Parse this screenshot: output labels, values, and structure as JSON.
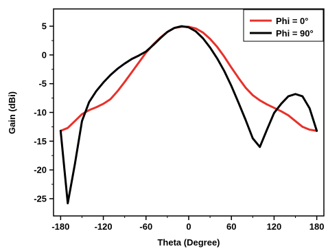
{
  "chart_data": {
    "type": "line",
    "title": "",
    "xlabel": "Theta (Degree)",
    "ylabel": "Gain (dBi)",
    "xlim": [
      -190,
      190
    ],
    "ylim": [
      -28,
      8
    ],
    "xticks": [
      -180,
      -120,
      -60,
      0,
      60,
      120,
      180
    ],
    "yticks": [
      5,
      0,
      -5,
      -10,
      -15,
      -20,
      -25
    ],
    "grid": false,
    "legend_position": "top-right",
    "series": [
      {
        "name": "Phi = 0°",
        "color": "#e8302a",
        "x": [
          -180,
          -170,
          -160,
          -150,
          -140,
          -130,
          -120,
          -110,
          -100,
          -90,
          -80,
          -70,
          -60,
          -50,
          -40,
          -30,
          -20,
          -10,
          0,
          10,
          20,
          30,
          40,
          50,
          60,
          70,
          80,
          90,
          100,
          110,
          120,
          130,
          140,
          150,
          160,
          170,
          180
        ],
        "y": [
          -13.2,
          -12.7,
          -11.5,
          -10.3,
          -9.6,
          -9.1,
          -8.5,
          -7.7,
          -6.3,
          -4.7,
          -3.0,
          -1.3,
          0.4,
          1.8,
          3.0,
          4.0,
          4.7,
          4.9,
          4.9,
          4.6,
          3.9,
          2.8,
          1.4,
          -0.3,
          -2.2,
          -4.0,
          -5.7,
          -7.0,
          -7.9,
          -8.6,
          -9.2,
          -9.8,
          -10.5,
          -11.5,
          -12.5,
          -13.0,
          -13.2
        ]
      },
      {
        "name": "Phi = 90°",
        "color": "#000000",
        "x": [
          -180,
          -170,
          -160,
          -150,
          -140,
          -130,
          -120,
          -110,
          -100,
          -90,
          -80,
          -70,
          -60,
          -50,
          -40,
          -30,
          -20,
          -10,
          0,
          10,
          20,
          30,
          40,
          50,
          60,
          70,
          80,
          90,
          100,
          110,
          120,
          130,
          140,
          150,
          160,
          170,
          180
        ],
        "y": [
          -13.2,
          -25.8,
          -19.0,
          -11.5,
          -8.2,
          -6.3,
          -4.8,
          -3.5,
          -2.4,
          -1.5,
          -0.7,
          -0.1,
          0.6,
          1.7,
          2.9,
          4.0,
          4.7,
          5.0,
          4.8,
          4.1,
          2.9,
          1.3,
          -0.6,
          -2.8,
          -5.4,
          -8.3,
          -11.3,
          -14.5,
          -16.0,
          -13.0,
          -10.1,
          -8.5,
          -7.2,
          -6.8,
          -7.2,
          -9.3,
          -13.2
        ]
      }
    ]
  }
}
